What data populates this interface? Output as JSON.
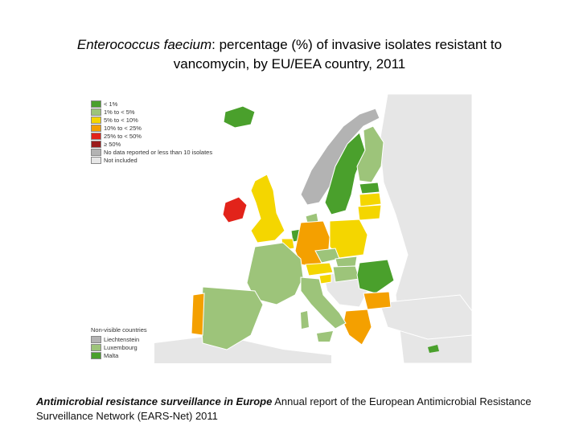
{
  "title": {
    "species": "Enterococcus faecium",
    "rest_line1": ": percentage (%) of invasive isolates resistant to",
    "line2": "vancomycin, by EU/EEA country, 2011"
  },
  "legend": {
    "items": [
      {
        "label": "< 1%",
        "color": "#4aa02c"
      },
      {
        "label": "1% to < 5%",
        "color": "#9dc47a"
      },
      {
        "label": "5% to < 10%",
        "color": "#f4d600"
      },
      {
        "label": "10% to < 25%",
        "color": "#f4a000"
      },
      {
        "label": "25% to < 50%",
        "color": "#e2231a"
      },
      {
        "label": "≥ 50%",
        "color": "#9b1b1b"
      },
      {
        "label": "No data reported or less than 10 isolates",
        "color": "#b3b3b3"
      },
      {
        "label": "Not included",
        "color": "#e6e6e6"
      }
    ]
  },
  "non_visible": {
    "header": "Non-visible countries",
    "items": [
      {
        "label": "Liechtenstein",
        "color": "#b3b3b3"
      },
      {
        "label": "Luxembourg",
        "color": "#9dc47a"
      },
      {
        "label": "Malta",
        "color": "#4aa02c"
      }
    ]
  },
  "source": {
    "title": "Antimicrobial resistance surveillance in Europe",
    "rest": " Annual report of the European Antimicrobial Resistance Surveillance Network (EARS-Net) 2011"
  }
}
